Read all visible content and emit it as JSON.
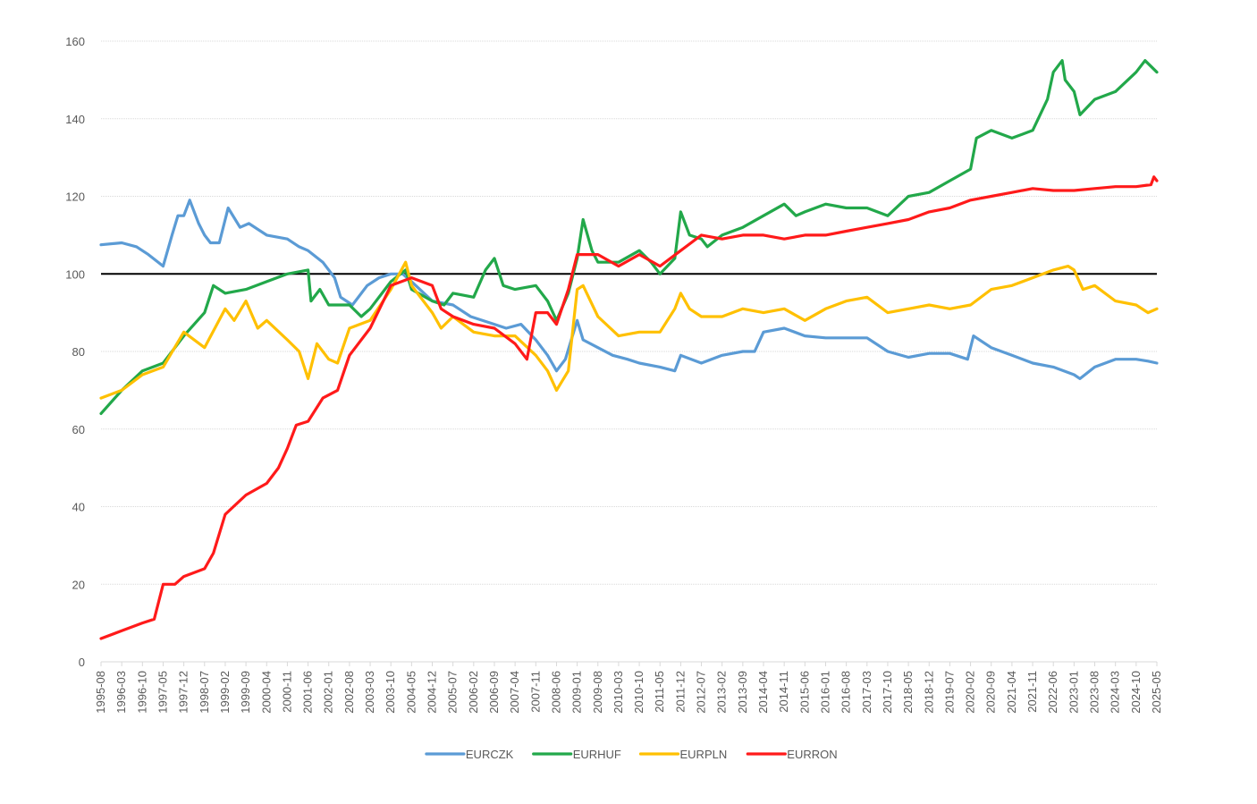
{
  "chart_data": {
    "type": "line",
    "title": "",
    "xlabel": "",
    "ylabel": "",
    "ylim": [
      0,
      160
    ],
    "y_ticks": [
      0,
      20,
      40,
      60,
      80,
      100,
      120,
      140,
      160
    ],
    "reference_line": {
      "value": 100,
      "color": "#000000"
    },
    "grid": true,
    "legend_position": "bottom",
    "x_tick_labels": [
      "1995-08",
      "1996-03",
      "1996-10",
      "1997-05",
      "1997-12",
      "1998-07",
      "1999-02",
      "1999-09",
      "2000-04",
      "2000-11",
      "2001-06",
      "2002-01",
      "2002-08",
      "2003-03",
      "2003-10",
      "2004-05",
      "2004-12",
      "2005-07",
      "2006-02",
      "2006-09",
      "2007-04",
      "2007-11",
      "2008-06",
      "2009-01",
      "2009-08",
      "2010-03",
      "2010-10",
      "2011-05",
      "2011-12",
      "2012-07",
      "2013-02",
      "2013-09",
      "2014-04",
      "2014-11",
      "2015-06",
      "2016-01",
      "2016-08",
      "2017-03",
      "2017-10",
      "2018-05",
      "2018-12",
      "2019-07",
      "2020-02",
      "2020-09",
      "2021-04",
      "2021-11",
      "2022-06",
      "2023-01",
      "2023-08",
      "2024-03",
      "2024-10",
      "2025-05"
    ],
    "series": [
      {
        "name": "EURCZK",
        "color": "#5B9BD5",
        "points": [
          [
            "1995-08",
            107.5
          ],
          [
            "1996-03",
            108
          ],
          [
            "1996-08",
            107
          ],
          [
            "1996-12",
            105
          ],
          [
            "1997-05",
            102
          ],
          [
            "1997-08",
            110
          ],
          [
            "1997-10",
            115
          ],
          [
            "1997-12",
            115
          ],
          [
            "1998-02",
            119
          ],
          [
            "1998-05",
            113
          ],
          [
            "1998-07",
            110
          ],
          [
            "1998-09",
            108
          ],
          [
            "1998-12",
            108
          ],
          [
            "1999-03",
            117
          ],
          [
            "1999-07",
            112
          ],
          [
            "1999-10",
            113
          ],
          [
            "2000-04",
            110
          ],
          [
            "2000-11",
            109
          ],
          [
            "2001-03",
            107
          ],
          [
            "2001-06",
            106
          ],
          [
            "2001-11",
            103
          ],
          [
            "2002-03",
            99
          ],
          [
            "2002-05",
            94
          ],
          [
            "2002-09",
            92
          ],
          [
            "2003-02",
            97
          ],
          [
            "2003-06",
            99
          ],
          [
            "2003-10",
            100
          ],
          [
            "2004-02",
            100
          ],
          [
            "2004-05",
            98
          ],
          [
            "2004-12",
            93
          ],
          [
            "2005-07",
            92
          ],
          [
            "2006-01",
            89
          ],
          [
            "2006-09",
            87
          ],
          [
            "2007-01",
            86
          ],
          [
            "2007-06",
            87
          ],
          [
            "2007-11",
            83
          ],
          [
            "2008-03",
            79
          ],
          [
            "2008-06",
            75
          ],
          [
            "2008-09",
            78
          ],
          [
            "2009-01",
            88
          ],
          [
            "2009-03",
            83
          ],
          [
            "2009-08",
            81
          ],
          [
            "2010-01",
            79
          ],
          [
            "2010-06",
            78
          ],
          [
            "2010-10",
            77
          ],
          [
            "2011-05",
            76
          ],
          [
            "2011-10",
            75
          ],
          [
            "2011-12",
            79
          ],
          [
            "2012-07",
            77
          ],
          [
            "2013-02",
            79
          ],
          [
            "2013-09",
            80
          ],
          [
            "2014-01",
            80
          ],
          [
            "2014-04",
            85
          ],
          [
            "2014-11",
            86
          ],
          [
            "2015-06",
            84
          ],
          [
            "2016-01",
            83.5
          ],
          [
            "2016-08",
            83.5
          ],
          [
            "2017-03",
            83.5
          ],
          [
            "2017-10",
            80
          ],
          [
            "2018-05",
            78.5
          ],
          [
            "2018-12",
            79.5
          ],
          [
            "2019-07",
            79.5
          ],
          [
            "2020-01",
            78
          ],
          [
            "2020-03",
            84
          ],
          [
            "2020-09",
            81
          ],
          [
            "2021-04",
            79
          ],
          [
            "2021-11",
            77
          ],
          [
            "2022-06",
            76
          ],
          [
            "2023-01",
            74
          ],
          [
            "2023-03",
            73
          ],
          [
            "2023-08",
            76
          ],
          [
            "2024-03",
            78
          ],
          [
            "2024-10",
            78
          ],
          [
            "2025-02",
            77.5
          ],
          [
            "2025-05",
            77
          ]
        ]
      },
      {
        "name": "EURHUF",
        "color": "#22A84A",
        "points": [
          [
            "1995-08",
            64
          ],
          [
            "1996-03",
            70
          ],
          [
            "1996-10",
            75
          ],
          [
            "1997-05",
            77
          ],
          [
            "1997-12",
            84
          ],
          [
            "1998-07",
            90
          ],
          [
            "1998-10",
            97
          ],
          [
            "1999-02",
            95
          ],
          [
            "1999-09",
            96
          ],
          [
            "2000-04",
            98
          ],
          [
            "2000-11",
            100
          ],
          [
            "2001-06",
            101
          ],
          [
            "2001-07",
            93
          ],
          [
            "2001-10",
            96
          ],
          [
            "2002-01",
            92
          ],
          [
            "2002-08",
            92
          ],
          [
            "2002-12",
            89
          ],
          [
            "2003-03",
            91
          ],
          [
            "2003-10",
            98
          ],
          [
            "2004-03",
            101
          ],
          [
            "2004-05",
            96
          ],
          [
            "2004-12",
            93
          ],
          [
            "2005-04",
            92
          ],
          [
            "2005-07",
            95
          ],
          [
            "2006-02",
            94
          ],
          [
            "2006-06",
            101
          ],
          [
            "2006-09",
            104
          ],
          [
            "2006-12",
            97
          ],
          [
            "2007-04",
            96
          ],
          [
            "2007-11",
            97
          ],
          [
            "2008-03",
            93
          ],
          [
            "2008-06",
            88
          ],
          [
            "2008-10",
            95
          ],
          [
            "2009-01",
            104
          ],
          [
            "2009-03",
            114
          ],
          [
            "2009-06",
            106
          ],
          [
            "2009-08",
            103
          ],
          [
            "2010-03",
            103
          ],
          [
            "2010-10",
            106
          ],
          [
            "2011-02",
            103
          ],
          [
            "2011-05",
            100
          ],
          [
            "2011-10",
            104
          ],
          [
            "2011-12",
            116
          ],
          [
            "2012-03",
            110
          ],
          [
            "2012-07",
            109
          ],
          [
            "2012-09",
            107
          ],
          [
            "2013-02",
            110
          ],
          [
            "2013-09",
            112
          ],
          [
            "2014-04",
            115
          ],
          [
            "2014-11",
            118
          ],
          [
            "2015-03",
            115
          ],
          [
            "2015-06",
            116
          ],
          [
            "2016-01",
            118
          ],
          [
            "2016-08",
            117
          ],
          [
            "2017-03",
            117
          ],
          [
            "2017-10",
            115
          ],
          [
            "2018-05",
            120
          ],
          [
            "2018-12",
            121
          ],
          [
            "2019-07",
            124
          ],
          [
            "2020-02",
            127
          ],
          [
            "2020-04",
            135
          ],
          [
            "2020-09",
            137
          ],
          [
            "2021-04",
            135
          ],
          [
            "2021-11",
            137
          ],
          [
            "2022-04",
            145
          ],
          [
            "2022-06",
            152
          ],
          [
            "2022-09",
            155
          ],
          [
            "2022-10",
            150
          ],
          [
            "2023-01",
            147
          ],
          [
            "2023-03",
            141
          ],
          [
            "2023-08",
            145
          ],
          [
            "2024-03",
            147
          ],
          [
            "2024-10",
            152
          ],
          [
            "2025-01",
            155
          ],
          [
            "2025-05",
            152
          ]
        ]
      },
      {
        "name": "EURPLN",
        "color": "#FFC000",
        "points": [
          [
            "1995-08",
            68
          ],
          [
            "1996-03",
            70
          ],
          [
            "1996-10",
            74
          ],
          [
            "1997-05",
            76
          ],
          [
            "1997-12",
            85
          ],
          [
            "1998-07",
            81
          ],
          [
            "1999-02",
            91
          ],
          [
            "1999-05",
            88
          ],
          [
            "1999-09",
            93
          ],
          [
            "2000-01",
            86
          ],
          [
            "2000-04",
            88
          ],
          [
            "2000-11",
            83
          ],
          [
            "2001-03",
            80
          ],
          [
            "2001-06",
            73
          ],
          [
            "2001-09",
            82
          ],
          [
            "2002-01",
            78
          ],
          [
            "2002-04",
            77
          ],
          [
            "2002-08",
            86
          ],
          [
            "2003-03",
            88
          ],
          [
            "2003-10",
            96
          ],
          [
            "2004-03",
            103
          ],
          [
            "2004-05",
            97
          ],
          [
            "2004-12",
            90
          ],
          [
            "2005-03",
            86
          ],
          [
            "2005-07",
            89
          ],
          [
            "2006-02",
            85
          ],
          [
            "2006-09",
            84
          ],
          [
            "2007-04",
            84
          ],
          [
            "2007-11",
            79
          ],
          [
            "2008-03",
            75
          ],
          [
            "2008-06",
            70
          ],
          [
            "2008-10",
            75
          ],
          [
            "2009-01",
            96
          ],
          [
            "2009-03",
            97
          ],
          [
            "2009-08",
            89
          ],
          [
            "2010-03",
            84
          ],
          [
            "2010-10",
            85
          ],
          [
            "2011-05",
            85
          ],
          [
            "2011-10",
            91
          ],
          [
            "2011-12",
            95
          ],
          [
            "2012-03",
            91
          ],
          [
            "2012-07",
            89
          ],
          [
            "2013-02",
            89
          ],
          [
            "2013-09",
            91
          ],
          [
            "2014-04",
            90
          ],
          [
            "2014-11",
            91
          ],
          [
            "2015-06",
            88
          ],
          [
            "2016-01",
            91
          ],
          [
            "2016-08",
            93
          ],
          [
            "2017-03",
            94
          ],
          [
            "2017-10",
            90
          ],
          [
            "2018-05",
            91
          ],
          [
            "2018-12",
            92
          ],
          [
            "2019-07",
            91
          ],
          [
            "2020-02",
            92
          ],
          [
            "2020-09",
            96
          ],
          [
            "2021-04",
            97
          ],
          [
            "2021-11",
            99
          ],
          [
            "2022-06",
            101
          ],
          [
            "2022-11",
            102
          ],
          [
            "2023-01",
            101
          ],
          [
            "2023-04",
            96
          ],
          [
            "2023-08",
            97
          ],
          [
            "2024-03",
            93
          ],
          [
            "2024-10",
            92
          ],
          [
            "2025-02",
            90
          ],
          [
            "2025-05",
            91
          ]
        ]
      },
      {
        "name": "EURRON",
        "color": "#FF1A1A",
        "points": [
          [
            "1995-08",
            6
          ],
          [
            "1996-03",
            8
          ],
          [
            "1996-10",
            10
          ],
          [
            "1997-02",
            11
          ],
          [
            "1997-05",
            20
          ],
          [
            "1997-09",
            20
          ],
          [
            "1997-12",
            22
          ],
          [
            "1998-07",
            24
          ],
          [
            "1998-10",
            28
          ],
          [
            "1999-02",
            38
          ],
          [
            "1999-09",
            43
          ],
          [
            "2000-04",
            46
          ],
          [
            "2000-08",
            50
          ],
          [
            "2000-11",
            55
          ],
          [
            "2001-02",
            61
          ],
          [
            "2001-06",
            62
          ],
          [
            "2001-11",
            68
          ],
          [
            "2002-04",
            70
          ],
          [
            "2002-08",
            79
          ],
          [
            "2003-03",
            86
          ],
          [
            "2003-10",
            97
          ],
          [
            "2004-05",
            99
          ],
          [
            "2004-12",
            97
          ],
          [
            "2005-03",
            91
          ],
          [
            "2005-07",
            89
          ],
          [
            "2006-02",
            87
          ],
          [
            "2006-09",
            86
          ],
          [
            "2007-04",
            82
          ],
          [
            "2007-08",
            78
          ],
          [
            "2007-11",
            90
          ],
          [
            "2008-03",
            90
          ],
          [
            "2008-06",
            87
          ],
          [
            "2008-10",
            96
          ],
          [
            "2009-01",
            105
          ],
          [
            "2009-08",
            105
          ],
          [
            "2010-03",
            102
          ],
          [
            "2010-10",
            105
          ],
          [
            "2011-05",
            102
          ],
          [
            "2011-12",
            106
          ],
          [
            "2012-07",
            110
          ],
          [
            "2013-02",
            109
          ],
          [
            "2013-09",
            110
          ],
          [
            "2014-04",
            110
          ],
          [
            "2014-11",
            109
          ],
          [
            "2015-06",
            110
          ],
          [
            "2016-01",
            110
          ],
          [
            "2016-08",
            111
          ],
          [
            "2017-03",
            112
          ],
          [
            "2017-10",
            113
          ],
          [
            "2018-05",
            114
          ],
          [
            "2018-12",
            116
          ],
          [
            "2019-07",
            117
          ],
          [
            "2020-02",
            119
          ],
          [
            "2020-09",
            120
          ],
          [
            "2021-04",
            121
          ],
          [
            "2021-11",
            122
          ],
          [
            "2022-06",
            121.5
          ],
          [
            "2023-01",
            121.5
          ],
          [
            "2023-08",
            122
          ],
          [
            "2024-03",
            122.5
          ],
          [
            "2024-10",
            122.5
          ],
          [
            "2025-03",
            123
          ],
          [
            "2025-04",
            125
          ],
          [
            "2025-05",
            124
          ]
        ]
      }
    ]
  }
}
